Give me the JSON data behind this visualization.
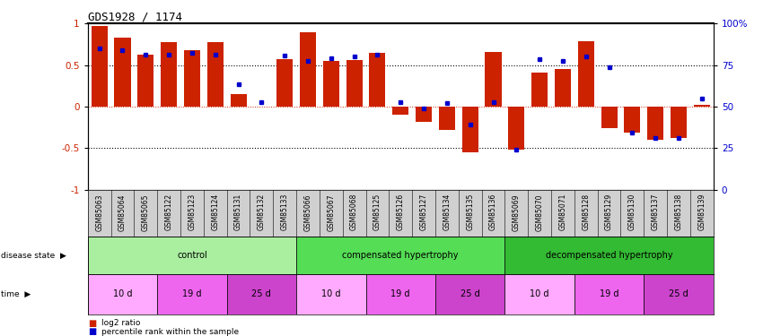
{
  "title": "GDS1928 / 1174",
  "samples": [
    "GSM85063",
    "GSM85064",
    "GSM85065",
    "GSM85122",
    "GSM85123",
    "GSM85124",
    "GSM85131",
    "GSM85132",
    "GSM85133",
    "GSM85066",
    "GSM85067",
    "GSM85068",
    "GSM85125",
    "GSM85126",
    "GSM85127",
    "GSM85134",
    "GSM85135",
    "GSM85136",
    "GSM85069",
    "GSM85070",
    "GSM85071",
    "GSM85128",
    "GSM85129",
    "GSM85130",
    "GSM85137",
    "GSM85138",
    "GSM85139"
  ],
  "log2_ratio": [
    0.97,
    0.83,
    0.63,
    0.78,
    0.68,
    0.78,
    0.15,
    0.0,
    0.57,
    0.9,
    0.55,
    0.56,
    0.65,
    -0.1,
    -0.18,
    -0.28,
    -0.55,
    0.66,
    -0.52,
    0.41,
    0.45,
    0.79,
    -0.26,
    -0.31,
    -0.4,
    -0.38,
    0.02
  ],
  "percentile_pos": [
    0.7,
    0.68,
    0.63,
    0.63,
    0.65,
    0.63,
    0.27,
    0.05,
    0.62,
    0.55,
    0.58,
    0.6,
    0.63,
    0.05,
    -0.02,
    0.04,
    -0.22,
    0.05,
    -0.52,
    0.57,
    0.55,
    0.6,
    0.48,
    -0.31,
    -0.38,
    -0.38,
    0.1
  ],
  "disease_state_groups": [
    {
      "label": "control",
      "start": 0,
      "end": 9,
      "color": "#aaeea0"
    },
    {
      "label": "compensated hypertrophy",
      "start": 9,
      "end": 18,
      "color": "#55dd55"
    },
    {
      "label": "decompensated hypertrophy",
      "start": 18,
      "end": 27,
      "color": "#33bb33"
    }
  ],
  "time_groups": [
    {
      "label": "10 d",
      "start": 0,
      "end": 3,
      "color": "#ffaaff"
    },
    {
      "label": "19 d",
      "start": 3,
      "end": 6,
      "color": "#ee66ee"
    },
    {
      "label": "25 d",
      "start": 6,
      "end": 9,
      "color": "#cc44cc"
    },
    {
      "label": "10 d",
      "start": 9,
      "end": 12,
      "color": "#ffaaff"
    },
    {
      "label": "19 d",
      "start": 12,
      "end": 15,
      "color": "#ee66ee"
    },
    {
      "label": "25 d",
      "start": 15,
      "end": 18,
      "color": "#cc44cc"
    },
    {
      "label": "10 d",
      "start": 18,
      "end": 21,
      "color": "#ffaaff"
    },
    {
      "label": "19 d",
      "start": 21,
      "end": 24,
      "color": "#ee66ee"
    },
    {
      "label": "25 d",
      "start": 24,
      "end": 27,
      "color": "#cc44cc"
    }
  ],
  "bar_color": "#cc2200",
  "dot_color": "#0000cc",
  "ylim": [
    -1,
    1
  ],
  "yticks": [
    -1,
    -0.5,
    0,
    0.5,
    1
  ],
  "ytick_labels": [
    "-1",
    "-0.5",
    "0",
    "0.5",
    "1"
  ],
  "y2ticks": [
    0,
    25,
    50,
    75,
    100
  ],
  "y2tick_labels": [
    "0",
    "25",
    "50",
    "75",
    "100%"
  ],
  "dotted_lines": [
    -0.5,
    0.5
  ],
  "sample_bg_color": "#d0d0d0",
  "bg_color": "#ffffff"
}
